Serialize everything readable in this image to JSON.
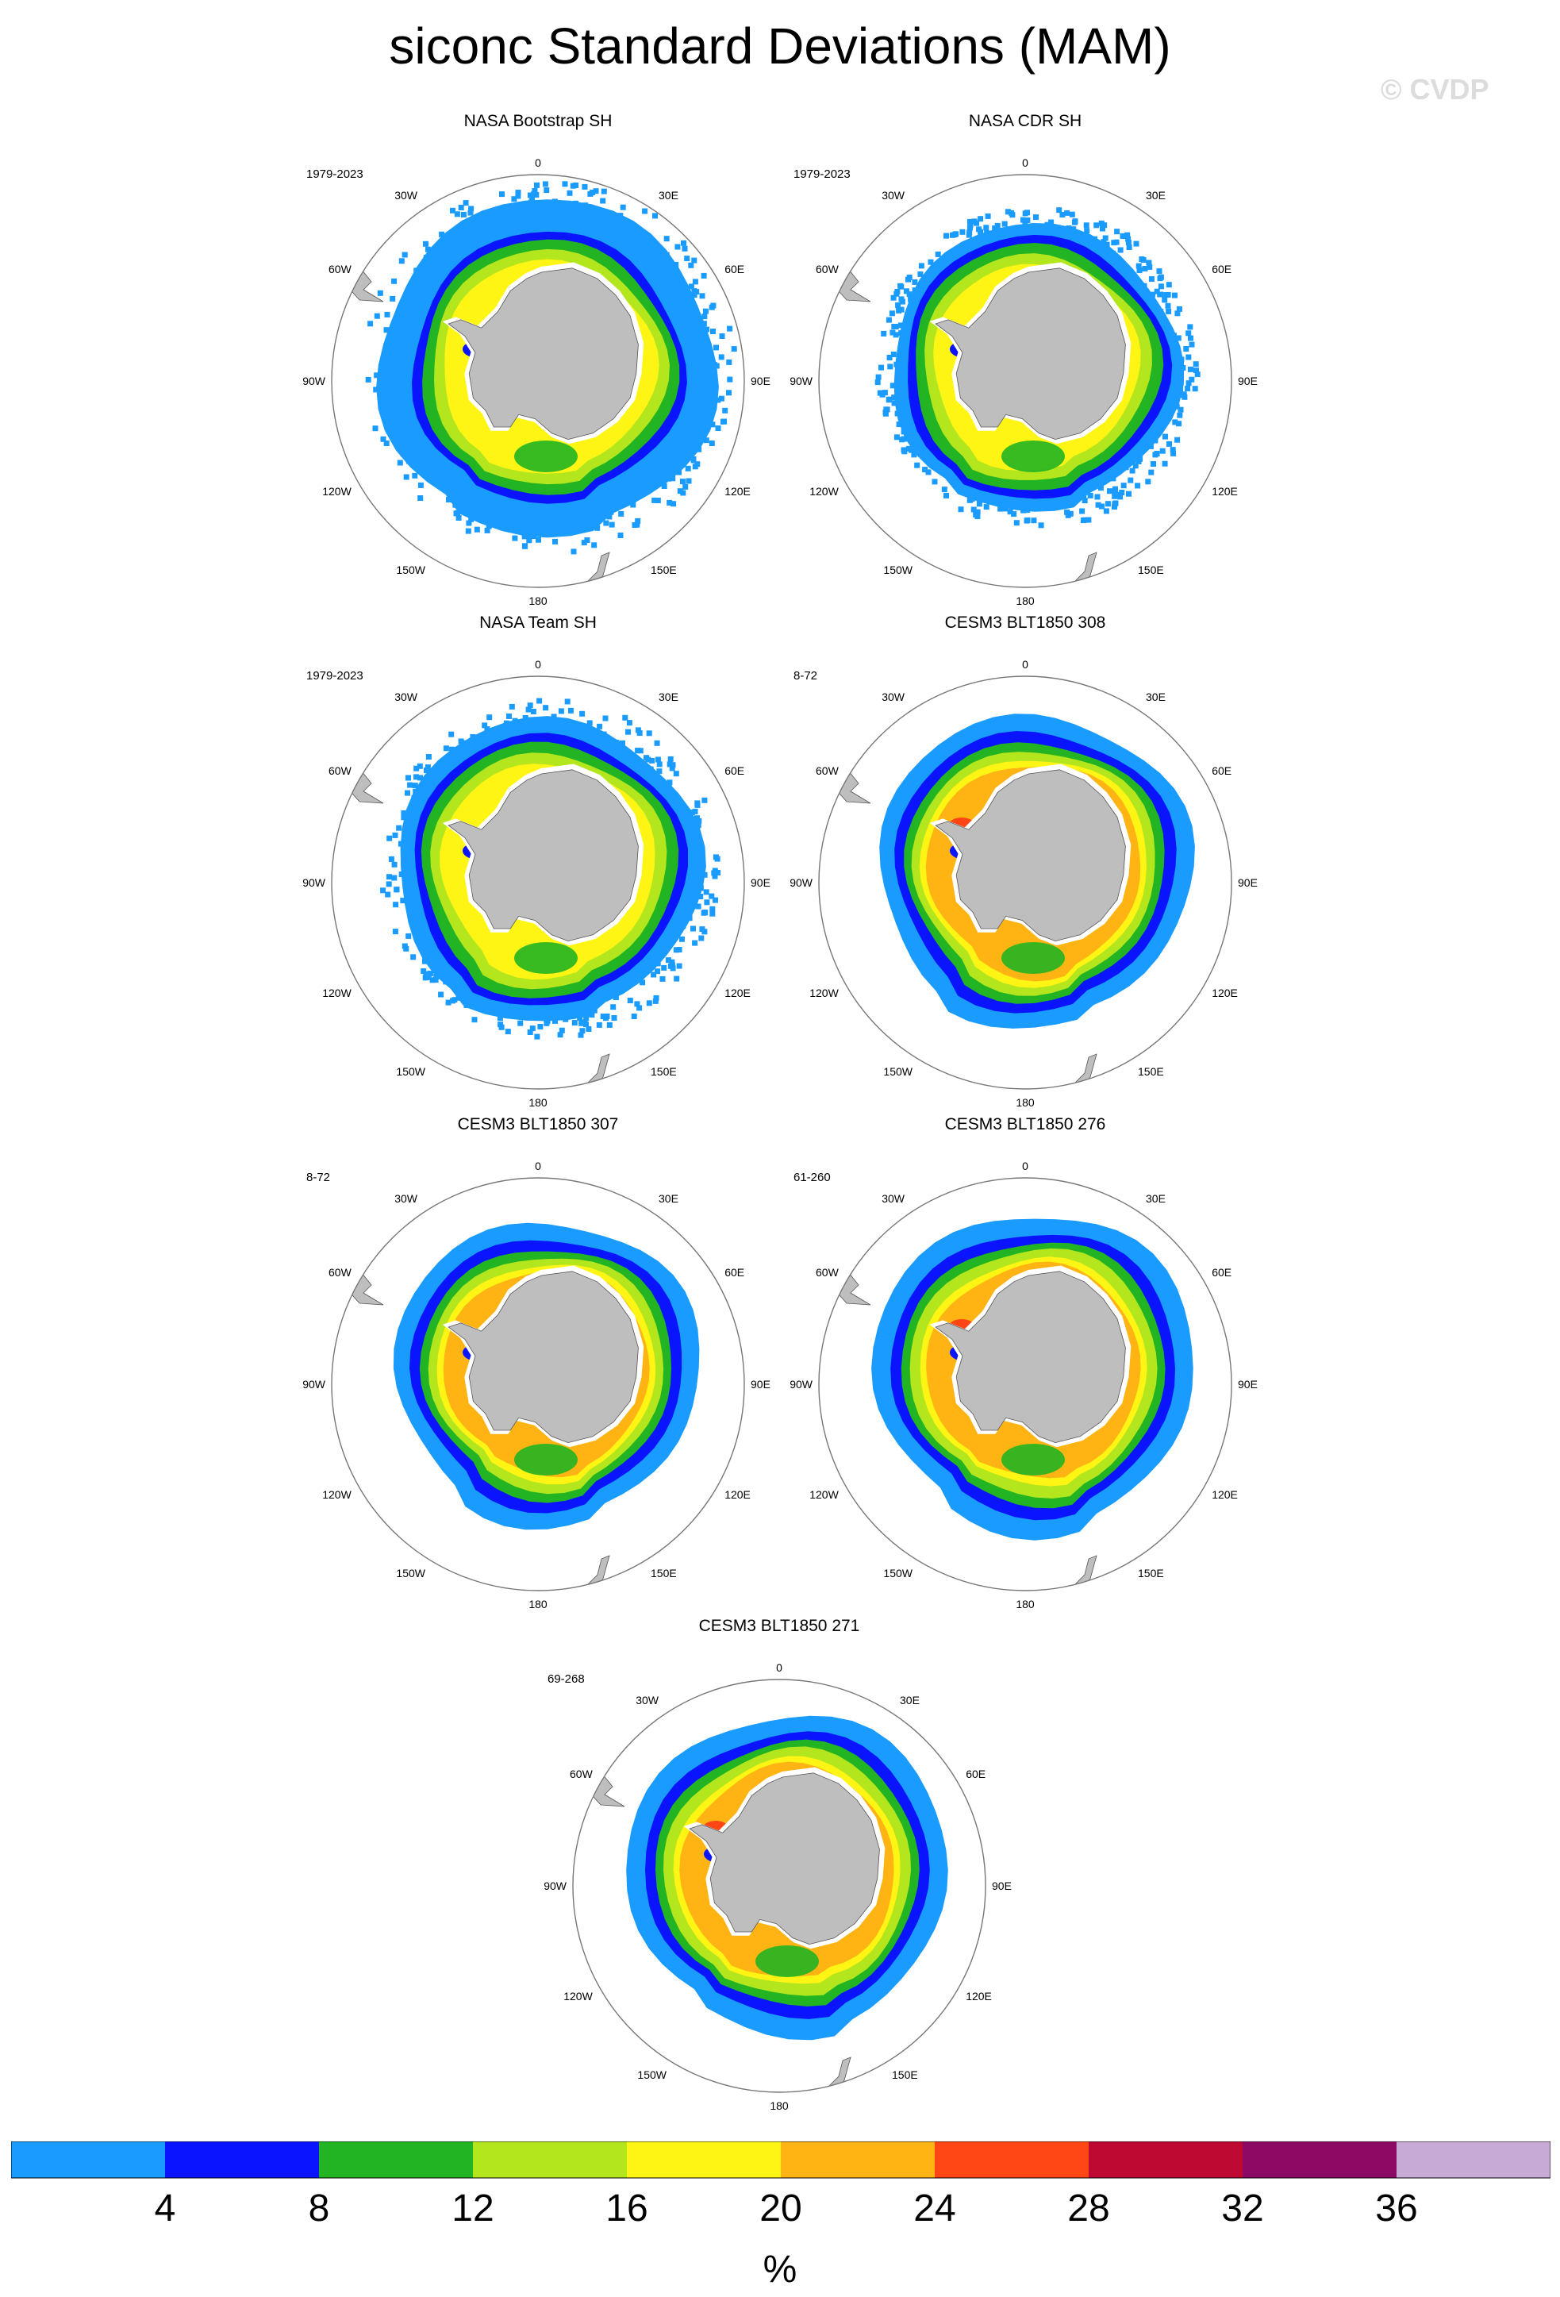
{
  "title": "siconc Standard Deviations (MAM)",
  "watermark": "© CVDP",
  "map_labels": {
    "top": "0",
    "bottom": "180",
    "left": "90W",
    "right": "90E",
    "upper_left": "30W",
    "upper_right": "30E",
    "mid_upper_left": "60W",
    "mid_upper_right": "60E",
    "mid_lower_left": "120W",
    "mid_lower_right": "120E",
    "lower_left": "150W",
    "lower_right": "150E"
  },
  "panels": [
    {
      "title": "NASA Bootstrap SH",
      "years": "1979-2023",
      "style": "obs_bootstrap"
    },
    {
      "title": "NASA CDR SH",
      "years": "1979-2023",
      "style": "obs_cdr"
    },
    {
      "title": "NASA Team SH",
      "years": "1979-2023",
      "style": "obs_team"
    },
    {
      "title": "CESM3 BLT1850 308",
      "years": "8-72",
      "style": "model_a"
    },
    {
      "title": "CESM3 BLT1850 307",
      "years": "8-72",
      "style": "model_b"
    },
    {
      "title": "CESM3 BLT1850 276",
      "years": "61-260",
      "style": "model_c"
    },
    {
      "title": "CESM3 BLT1850 271",
      "years": "69-268",
      "style": "model_c"
    }
  ],
  "colorbar": {
    "colors": [
      "#1a9bff",
      "#0a14ff",
      "#22b422",
      "#b4e61e",
      "#fff514",
      "#ffb414",
      "#ff4614",
      "#be0a32",
      "#8c0a64",
      "#c8aad7"
    ],
    "tick_labels": [
      "4",
      "8",
      "12",
      "16",
      "20",
      "24",
      "28",
      "32",
      "36"
    ],
    "units": "%"
  },
  "land_color": "#bebebe"
}
